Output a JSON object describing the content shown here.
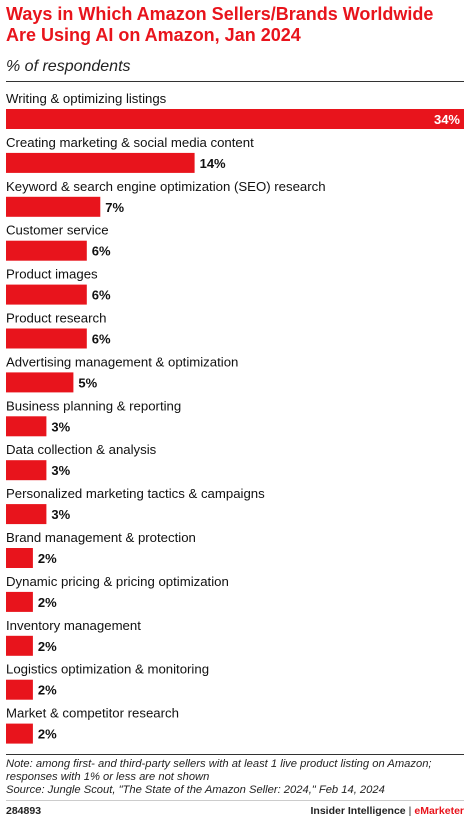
{
  "title": "Ways in Which Amazon Sellers/Brands Worldwide Are Using AI on Amazon, Jan 2024",
  "subtitle": "% of respondents",
  "note_line1": "Note: among first- and third-party sellers with at least 1 live product listing on Amazon;",
  "note_line2": "responses with 1% or less are not shown",
  "source": "Source: Jungle Scout, \"The State of the Amazon Seller: 2024,\" Feb 14, 2024",
  "footer": {
    "chart_id": "284893",
    "brand_left": "Insider Intelligence",
    "separator": "|",
    "brand_right": "eMarketer"
  },
  "colors": {
    "accent": "#e8141c",
    "text": "#222222"
  },
  "chart_data": {
    "type": "bar",
    "orientation": "horizontal",
    "title": "Ways in Which Amazon Sellers/Brands Worldwide Are Using AI on Amazon, Jan 2024",
    "subtitle": "% of respondents",
    "unit": "%",
    "xlim": [
      0,
      34
    ],
    "grid": false,
    "categories": [
      "Writing & optimizing listings",
      "Creating marketing & social media content",
      "Keyword & search engine optimization (SEO) research",
      "Customer service",
      "Product images",
      "Product research",
      "Advertising management & optimization",
      "Business planning & reporting",
      "Data collection & analysis",
      "Personalized marketing tactics & campaigns",
      "Brand management & protection",
      "Dynamic pricing & pricing optimization",
      "Inventory management",
      "Logistics optimization & monitoring",
      "Market & competitor research"
    ],
    "values": [
      34,
      14,
      7,
      6,
      6,
      6,
      5,
      3,
      3,
      3,
      2,
      2,
      2,
      2,
      2
    ],
    "value_labels": [
      "34%",
      "14%",
      "7%",
      "6%",
      "6%",
      "6%",
      "5%",
      "3%",
      "3%",
      "3%",
      "2%",
      "2%",
      "2%",
      "2%",
      "2%"
    ]
  }
}
